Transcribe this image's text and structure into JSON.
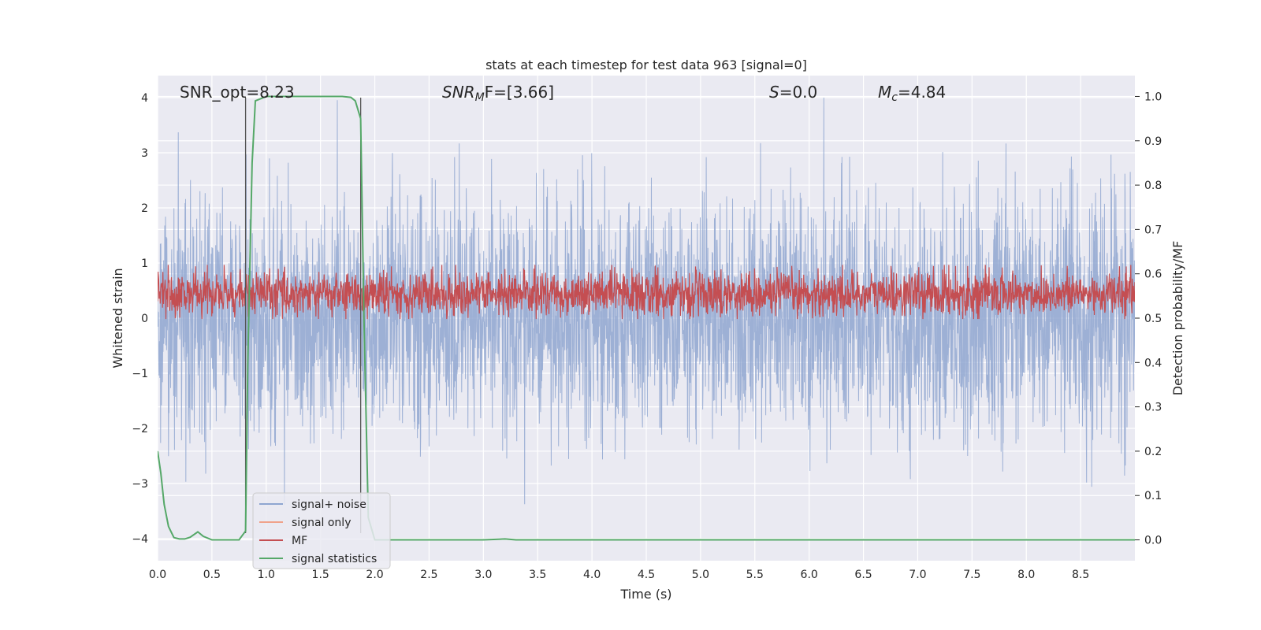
{
  "chart_data": {
    "type": "line",
    "title": "stats at each timestep for test data 963 [signal=0]",
    "xlabel": "Time (s)",
    "ylabel_left": "Whitened strain",
    "ylabel_right": "Detection probability/MF",
    "xlim": [
      0.0,
      9.0
    ],
    "ylim_left": [
      -4.4,
      4.4
    ],
    "ylim_right": [
      -0.047,
      1.047
    ],
    "x_ticks": [
      "0.0",
      "0.5",
      "1.0",
      "1.5",
      "2.0",
      "2.5",
      "3.0",
      "3.5",
      "4.0",
      "4.5",
      "5.0",
      "5.5",
      "6.0",
      "6.5",
      "7.0",
      "7.5",
      "8.0",
      "8.5"
    ],
    "y_ticks_left": [
      "−4",
      "−3",
      "−2",
      "−1",
      "0",
      "1",
      "2",
      "3",
      "4"
    ],
    "y_ticks_right": [
      "0.0",
      "0.1",
      "0.2",
      "0.3",
      "0.4",
      "0.5",
      "0.6",
      "0.7",
      "0.8",
      "0.9",
      "1.0"
    ],
    "annotations": {
      "snr_opt": "SNR_opt=8.23",
      "snr_mf_main": "SNR",
      "snr_mf_sub": "M",
      "snr_mf_rest": "F=[3.66]",
      "s_main": "S",
      "s_rest": "=0.0",
      "mc_main": "M",
      "mc_sub": "c",
      "mc_rest": "=4.84"
    },
    "vlines_x": [
      0.81,
      1.87
    ],
    "series": [
      {
        "name": "signal+ noise",
        "color": "#8fa6d0",
        "axis": "left",
        "note": "whitened noise, envelope approx ±2.5, peaks to ±4"
      },
      {
        "name": "signal only",
        "color": "#f0a28a",
        "axis": "left",
        "values": []
      },
      {
        "name": "MF",
        "color": "#c44e52",
        "axis": "right",
        "note": "matched filter, fluctuates approx 0.50–0.62"
      },
      {
        "name": "signal statistics",
        "color": "#55a868",
        "axis": "right",
        "x": [
          0.0,
          0.03,
          0.06,
          0.1,
          0.15,
          0.2,
          0.25,
          0.3,
          0.37,
          0.42,
          0.5,
          0.6,
          0.7,
          0.75,
          0.81,
          0.83,
          0.87,
          0.9,
          1.0,
          1.2,
          1.5,
          1.7,
          1.78,
          1.82,
          1.87,
          1.9,
          1.94,
          2.0,
          2.5,
          3.0,
          3.2,
          3.3,
          4.0,
          5.0,
          6.0,
          7.0,
          8.0,
          9.0
        ],
        "y": [
          0.2,
          0.15,
          0.08,
          0.03,
          0.005,
          0.002,
          0.002,
          0.006,
          0.018,
          0.008,
          0.0,
          0.0,
          0.0,
          0.0,
          0.02,
          0.4,
          0.85,
          0.99,
          1.0,
          1.0,
          1.0,
          1.0,
          0.998,
          0.99,
          0.95,
          0.5,
          0.05,
          0.0,
          0.0,
          0.0,
          0.002,
          0.0,
          0.0,
          0.0,
          0.0,
          0.0,
          0.0,
          0.0
        ]
      }
    ],
    "legend": {
      "position": "lower-left",
      "entries": [
        "signal+ noise",
        "signal only",
        "MF",
        "signal statistics"
      ]
    },
    "grid": true
  }
}
